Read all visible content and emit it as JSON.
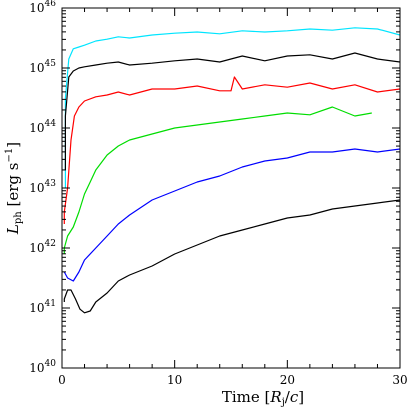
{
  "chart_data": {
    "type": "line",
    "xlabel": "Time [R_j/c]",
    "ylabel": "L_ph [erg s^-1]",
    "xlim": [
      0,
      30
    ],
    "ylim_log10": [
      40,
      46
    ],
    "y_scale": "log",
    "x_ticks": [
      {
        "value": 0,
        "label": "0"
      },
      {
        "value": 10,
        "label": "10"
      },
      {
        "value": 20,
        "label": "20"
      },
      {
        "value": 30,
        "label": "30"
      }
    ],
    "y_ticks": [
      {
        "exp": 40,
        "base": "10",
        "power": "40"
      },
      {
        "exp": 41,
        "base": "10",
        "power": "41"
      },
      {
        "exp": 42,
        "base": "10",
        "power": "42"
      },
      {
        "exp": 43,
        "base": "10",
        "power": "43"
      },
      {
        "exp": 44,
        "base": "10",
        "power": "44"
      },
      {
        "exp": 45,
        "base": "10",
        "power": "45"
      },
      {
        "exp": 46,
        "base": "10",
        "power": "46"
      }
    ],
    "legend": "none",
    "grid": false,
    "series": [
      {
        "color": "#00e5ff",
        "log10_y_start": 43.0,
        "x": [
          0.3,
          0.6,
          1.0,
          1.5,
          2,
          3,
          4,
          5,
          6,
          8,
          10,
          12,
          14,
          16,
          18,
          20,
          22,
          24,
          26,
          28,
          30
        ],
        "log10_y": [
          44.5,
          45.15,
          45.32,
          45.35,
          45.38,
          45.45,
          45.48,
          45.52,
          45.5,
          45.55,
          45.58,
          45.6,
          45.57,
          45.62,
          45.6,
          45.62,
          45.65,
          45.63,
          45.67,
          45.65,
          45.55
        ]
      },
      {
        "color": "#000000",
        "log10_y_start": 43.3,
        "x": [
          0.3,
          0.6,
          1.0,
          1.5,
          2,
          3,
          4,
          5,
          6,
          8,
          10,
          12,
          14,
          16,
          18,
          20,
          22,
          24,
          26,
          28,
          30
        ],
        "log10_y": [
          44.2,
          44.85,
          44.95,
          45.0,
          45.02,
          45.05,
          45.08,
          45.1,
          45.05,
          45.08,
          45.12,
          45.15,
          45.1,
          45.2,
          45.12,
          45.2,
          45.22,
          45.15,
          45.25,
          45.15,
          45.1
        ]
      },
      {
        "color": "#ff0000",
        "log10_y_start": 42.4,
        "x": [
          0.2,
          0.5,
          0.8,
          1.1,
          1.5,
          2,
          3,
          4,
          5,
          6,
          8,
          10,
          12,
          14,
          15,
          15.3,
          16,
          18,
          20,
          22,
          24,
          26,
          28,
          30
        ],
        "log10_y": [
          42.6,
          43.0,
          43.8,
          44.2,
          44.35,
          44.45,
          44.52,
          44.55,
          44.6,
          44.55,
          44.65,
          44.65,
          44.7,
          44.62,
          44.62,
          44.85,
          44.65,
          44.72,
          44.68,
          44.75,
          44.65,
          44.72,
          44.6,
          44.65
        ]
      },
      {
        "color": "#00dd00",
        "log10_y_start": 41.9,
        "x": [
          0.2,
          0.5,
          1.0,
          1.5,
          2,
          2.5,
          3,
          4,
          5,
          6,
          8,
          10,
          12,
          14,
          16,
          18,
          20,
          22,
          24,
          26,
          27.5
        ],
        "log10_y": [
          42.0,
          42.2,
          42.35,
          42.6,
          42.9,
          43.1,
          43.3,
          43.55,
          43.7,
          43.8,
          43.9,
          44.0,
          44.05,
          44.1,
          44.15,
          44.2,
          44.25,
          44.22,
          44.35,
          44.2,
          44.25
        ]
      },
      {
        "color": "#0000ff",
        "log10_y_start": 41.6,
        "x": [
          0.2,
          0.5,
          1.0,
          1.5,
          2,
          3,
          4,
          5,
          6,
          8,
          10,
          12,
          14,
          16,
          18,
          20,
          22,
          24,
          26,
          28,
          30
        ],
        "log10_y": [
          41.6,
          41.5,
          41.45,
          41.6,
          41.8,
          42.0,
          42.2,
          42.4,
          42.55,
          42.8,
          42.95,
          43.1,
          43.2,
          43.35,
          43.45,
          43.5,
          43.6,
          43.6,
          43.65,
          43.6,
          43.65
        ]
      },
      {
        "color": "#000000",
        "log10_y_start": 41.1,
        "x": [
          0.2,
          0.5,
          0.8,
          1.2,
          1.6,
          2.0,
          2.5,
          3,
          4,
          5,
          6,
          8,
          10,
          12,
          14,
          16,
          18,
          20,
          22,
          24,
          26,
          28,
          30
        ],
        "log10_y": [
          41.15,
          41.3,
          41.3,
          41.15,
          40.98,
          40.92,
          40.95,
          41.1,
          41.25,
          41.45,
          41.55,
          41.7,
          41.9,
          42.05,
          42.2,
          42.3,
          42.4,
          42.5,
          42.55,
          42.65,
          42.7,
          42.75,
          42.8
        ]
      }
    ]
  }
}
